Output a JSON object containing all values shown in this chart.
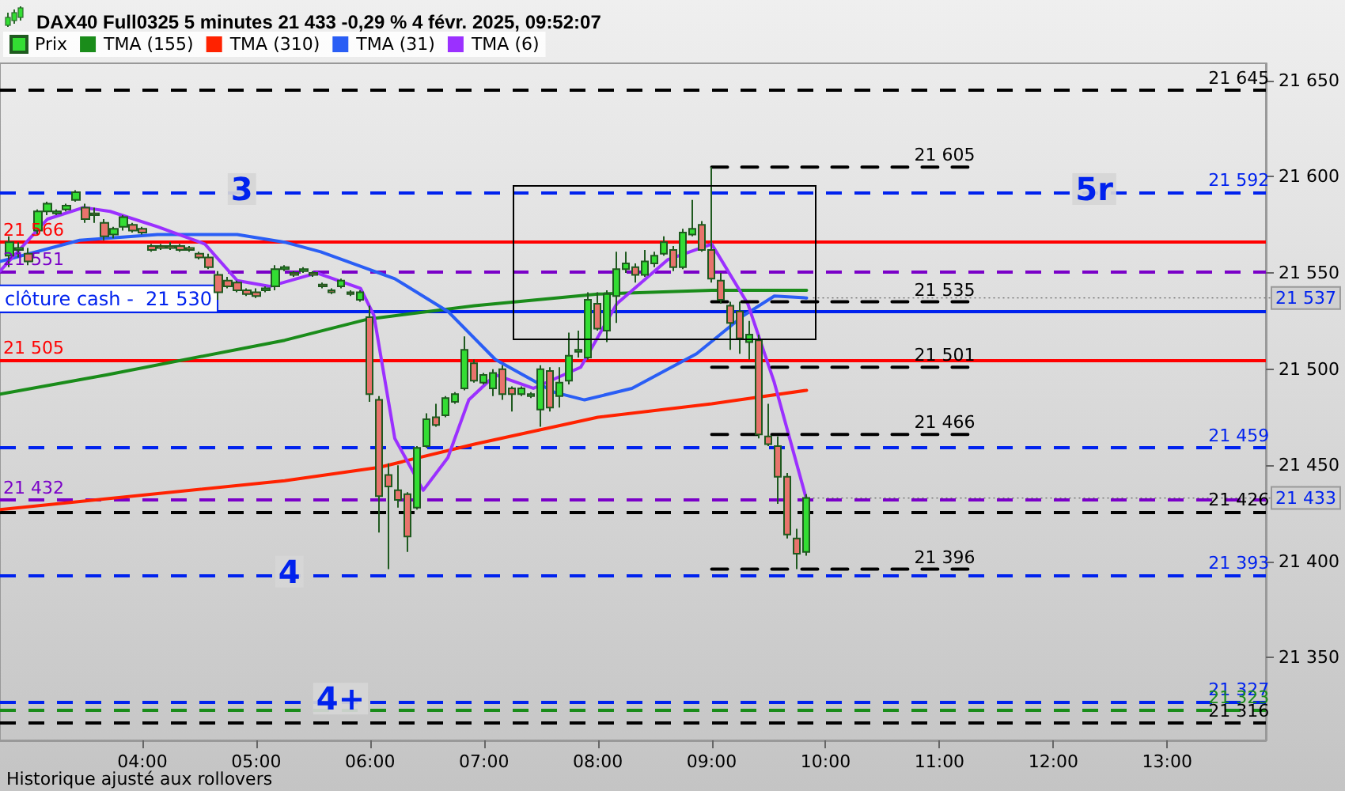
{
  "chart_data": {
    "type": "candlestick",
    "title": "DAX40 Full0325 5 minutes 21 433 -0,29 % 4 févr. 2025, 09:52:07",
    "legend": "top left",
    "xlim": [
      "2025-02-04T02:45",
      "2025-02-04T13:52"
    ],
    "xticks": [
      {
        "value": "2025-02-04T04:00",
        "label": "04:00"
      },
      {
        "value": "2025-02-04T05:00",
        "label": "05:00"
      },
      {
        "value": "2025-02-04T06:00",
        "label": "06:00"
      },
      {
        "value": "2025-02-04T07:00",
        "label": "07:00"
      },
      {
        "value": "2025-02-04T08:00",
        "label": "08:00"
      },
      {
        "value": "2025-02-04T09:00",
        "label": "09:00"
      },
      {
        "value": "2025-02-04T10:00",
        "label": "10:00"
      },
      {
        "value": "2025-02-04T11:00",
        "label": "11:00"
      },
      {
        "value": "2025-02-04T12:00",
        "label": "12:00"
      },
      {
        "value": "2025-02-04T13:00",
        "label": "13:00"
      }
    ],
    "ylim": [
      21307,
      21659
    ],
    "yticks": [
      {
        "value": 21350,
        "label": "21 350"
      },
      {
        "value": 21400,
        "label": "21 400"
      },
      {
        "value": 21450,
        "label": "21 450"
      },
      {
        "value": 21500,
        "label": "21 500"
      },
      {
        "value": 21550,
        "label": "21 550"
      },
      {
        "value": 21600,
        "label": "21 600"
      },
      {
        "value": 21650,
        "label": "21 650"
      }
    ],
    "series": [
      {
        "type": "line",
        "name": "TMA (155)",
        "color": "#1a8c1a",
        "marker": "none",
        "line_style": "solid",
        "x": [
          "2025-02-04T02:45",
          "2025-02-04T03:41",
          "2025-02-04T05:15",
          "2025-02-04T05:59",
          "2025-02-04T06:55",
          "2025-02-04T08:00",
          "2025-02-04T09:00",
          "2025-02-04T09:50"
        ],
        "values": [
          21487,
          21497,
          21515,
          21526,
          21533,
          21539,
          21541,
          21541
        ]
      },
      {
        "type": "line",
        "name": "TMA (310)",
        "color": "#ff2200",
        "marker": "none",
        "line_style": "solid",
        "x": [
          "2025-02-04T02:45",
          "2025-02-04T05:15",
          "2025-02-04T06:05",
          "2025-02-04T06:55",
          "2025-02-04T08:00",
          "2025-02-04T09:00",
          "2025-02-04T09:50"
        ],
        "values": [
          21427,
          21442,
          21449,
          21461,
          21475,
          21482,
          21489
        ]
      },
      {
        "type": "line",
        "name": "TMA (31)",
        "color": "#2a5ef5",
        "marker": "none",
        "line_style": "solid",
        "x": [
          "2025-02-04T02:45",
          "2025-02-04T03:27",
          "2025-02-04T04:08",
          "2025-02-04T04:50",
          "2025-02-04T05:15",
          "2025-02-04T05:34",
          "2025-02-04T06:13",
          "2025-02-04T06:41",
          "2025-02-04T07:06",
          "2025-02-04T07:37",
          "2025-02-04T07:53",
          "2025-02-04T08:18",
          "2025-02-04T08:52",
          "2025-02-04T09:17",
          "2025-02-04T09:33",
          "2025-02-04T09:50"
        ],
        "values": [
          21556,
          21567,
          21570,
          21570,
          21566,
          21561,
          21547,
          21530,
          21505,
          21488,
          21484,
          21490,
          21508,
          21528,
          21538,
          21537
        ]
      },
      {
        "type": "line",
        "name": "TMA (6)",
        "color": "#9b30ff",
        "marker": "none",
        "line_style": "solid",
        "x": [
          "2025-02-04T02:45",
          "2025-02-04T03:10",
          "2025-02-04T03:29",
          "2025-02-04T03:43",
          "2025-02-04T04:08",
          "2025-02-04T04:33",
          "2025-02-04T04:50",
          "2025-02-04T05:07",
          "2025-02-04T05:32",
          "2025-02-04T05:55",
          "2025-02-04T06:02",
          "2025-02-04T06:13",
          "2025-02-04T06:28",
          "2025-02-04T06:41",
          "2025-02-04T06:52",
          "2025-02-04T07:06",
          "2025-02-04T07:26",
          "2025-02-04T07:51",
          "2025-02-04T08:10",
          "2025-02-04T08:37",
          "2025-02-04T09:00",
          "2025-02-04T09:19",
          "2025-02-04T09:33",
          "2025-02-04T09:50"
        ],
        "values": [
          21551,
          21578,
          21584,
          21582,
          21574,
          21565,
          21546,
          21543,
          21550,
          21542,
          21528,
          21464,
          21437,
          21454,
          21484,
          21497,
          21490,
          21501,
          21534,
          21557,
          21565,
          21534,
          21493,
          21432
        ]
      },
      {
        "type": "line",
        "color": "#000000",
        "marker": "none",
        "line_style": "dashed",
        "x": [
          "2025-02-04T09:00",
          "2025-02-04T11:15"
        ],
        "values": [
          21605,
          21605
        ]
      },
      {
        "type": "line",
        "color": "#000000",
        "marker": "none",
        "line_style": "dashed",
        "x": [
          "2025-02-04T09:00",
          "2025-02-04T11:15"
        ],
        "values": [
          21535,
          21535
        ]
      },
      {
        "type": "line",
        "color": "#000000",
        "marker": "none",
        "line_style": "dashed",
        "x": [
          "2025-02-04T09:00",
          "2025-02-04T11:15"
        ],
        "values": [
          21501,
          21501
        ]
      },
      {
        "type": "line",
        "color": "#000000",
        "marker": "none",
        "line_style": "dashed",
        "x": [
          "2025-02-04T09:00",
          "2025-02-04T11:15"
        ],
        "values": [
          21466,
          21466
        ]
      },
      {
        "type": "line",
        "color": "#000000",
        "marker": "none",
        "line_style": "dashed",
        "x": [
          "2025-02-04T09:00",
          "2025-02-04T11:15"
        ],
        "values": [
          21396,
          21396
        ]
      },
      {
        "type": "candlestick",
        "name": "Prix",
        "color": "#33dd33",
        "x": [
          "2025-02-04T02:50",
          "2025-02-04T02:55",
          "2025-02-04T03:00",
          "2025-02-04T03:05",
          "2025-02-04T03:10",
          "2025-02-04T03:15",
          "2025-02-04T03:20",
          "2025-02-04T03:25",
          "2025-02-04T03:30",
          "2025-02-04T03:35",
          "2025-02-04T03:40",
          "2025-02-04T03:45",
          "2025-02-04T03:50",
          "2025-02-04T03:55",
          "2025-02-04T04:00",
          "2025-02-04T04:05",
          "2025-02-04T04:10",
          "2025-02-04T04:15",
          "2025-02-04T04:20",
          "2025-02-04T04:25",
          "2025-02-04T04:30",
          "2025-02-04T04:35",
          "2025-02-04T04:40",
          "2025-02-04T04:45",
          "2025-02-04T04:50",
          "2025-02-04T04:55",
          "2025-02-04T05:00",
          "2025-02-04T05:05",
          "2025-02-04T05:10",
          "2025-02-04T05:15",
          "2025-02-04T05:20",
          "2025-02-04T05:25",
          "2025-02-04T05:30",
          "2025-02-04T05:35",
          "2025-02-04T05:40",
          "2025-02-04T05:45",
          "2025-02-04T05:50",
          "2025-02-04T05:55",
          "2025-02-04T06:00",
          "2025-02-04T06:05",
          "2025-02-04T06:10",
          "2025-02-04T06:15",
          "2025-02-04T06:20",
          "2025-02-04T06:25",
          "2025-02-04T06:30",
          "2025-02-04T06:35",
          "2025-02-04T06:40",
          "2025-02-04T06:45",
          "2025-02-04T06:50",
          "2025-02-04T06:55",
          "2025-02-04T07:00",
          "2025-02-04T07:05",
          "2025-02-04T07:10",
          "2025-02-04T07:15",
          "2025-02-04T07:20",
          "2025-02-04T07:25",
          "2025-02-04T07:30",
          "2025-02-04T07:35",
          "2025-02-04T07:40",
          "2025-02-04T07:45",
          "2025-02-04T07:50",
          "2025-02-04T07:55",
          "2025-02-04T08:00",
          "2025-02-04T08:05",
          "2025-02-04T08:10",
          "2025-02-04T08:15",
          "2025-02-04T08:20",
          "2025-02-04T08:25",
          "2025-02-04T08:30",
          "2025-02-04T08:35",
          "2025-02-04T08:40",
          "2025-02-04T08:45",
          "2025-02-04T08:50",
          "2025-02-04T08:55",
          "2025-02-04T09:00",
          "2025-02-04T09:05",
          "2025-02-04T09:10",
          "2025-02-04T09:15",
          "2025-02-04T09:20",
          "2025-02-04T09:25",
          "2025-02-04T09:30",
          "2025-02-04T09:35",
          "2025-02-04T09:40",
          "2025-02-04T09:45",
          "2025-02-04T09:50"
        ],
        "ohlc": [
          [
            21559,
            21569,
            21553,
            21566
          ],
          [
            21562,
            21566,
            21558,
            21563
          ],
          [
            21560,
            21563,
            21554,
            21556
          ],
          [
            21572,
            21583,
            21570,
            21582
          ],
          [
            21582,
            21587,
            21580,
            21586
          ],
          [
            21581,
            21583,
            21580,
            21582
          ],
          [
            21583,
            21586,
            21582,
            21585
          ],
          [
            21588,
            21593,
            21587,
            21592
          ],
          [
            21584,
            21586,
            21576,
            21578
          ],
          [
            21581,
            21584,
            21576,
            21580
          ],
          [
            21576,
            21578,
            21567,
            21569
          ],
          [
            21570,
            21574,
            21568,
            21573
          ],
          [
            21574,
            21580,
            21572,
            21579
          ],
          [
            21575,
            21576,
            21571,
            21572
          ],
          [
            21573,
            21574,
            21570,
            21571
          ],
          [
            21564,
            21565,
            21561,
            21562
          ],
          [
            21564,
            21565,
            21562,
            21563
          ],
          [
            21564,
            21566,
            21562,
            21563
          ],
          [
            21564,
            21565,
            21561,
            21562
          ],
          [
            21563,
            21564,
            21561,
            21562
          ],
          [
            21560,
            21561,
            21557,
            21558
          ],
          [
            21558,
            21560,
            21552,
            21553
          ],
          [
            21549,
            21551,
            21536,
            21540
          ],
          [
            21546,
            21548,
            21542,
            21543
          ],
          [
            21545,
            21546,
            21540,
            21541
          ],
          [
            21541,
            21542,
            21538,
            21539
          ],
          [
            21540,
            21542,
            21537,
            21538
          ],
          [
            21541,
            21543,
            21540,
            21542
          ],
          [
            21543,
            21554,
            21541,
            21552
          ],
          [
            21552,
            21554,
            21551,
            21553
          ],
          [
            21550,
            21551,
            21548,
            21549
          ],
          [
            21551,
            21553,
            21550,
            21552
          ],
          [
            21550,
            21551,
            21548,
            21549
          ],
          [
            21544,
            21545,
            21542,
            21543
          ],
          [
            21541,
            21542,
            21539,
            21540
          ],
          [
            21543,
            21547,
            21542,
            21546
          ],
          [
            21540,
            21541,
            21538,
            21539
          ],
          [
            21536,
            21541,
            21535,
            21540
          ],
          [
            21527,
            21533,
            21483,
            21487
          ],
          [
            21484,
            21486,
            21415,
            21434
          ],
          [
            21445,
            21451,
            21396,
            21439
          ],
          [
            21437,
            21450,
            21428,
            21432
          ],
          [
            21435,
            21436,
            21405,
            21413
          ],
          [
            21428,
            21460,
            21427,
            21459
          ],
          [
            21460,
            21477,
            21459,
            21474
          ],
          [
            21475,
            21482,
            21470,
            21471
          ],
          [
            21476,
            21486,
            21475,
            21485
          ],
          [
            21483,
            21488,
            21482,
            21487
          ],
          [
            21490,
            21517,
            21489,
            21510
          ],
          [
            21503,
            21505,
            21493,
            21494
          ],
          [
            21493,
            21498,
            21492,
            21497
          ],
          [
            21490,
            21500,
            21486,
            21498
          ],
          [
            21500,
            21502,
            21484,
            21487
          ],
          [
            21490,
            21491,
            21478,
            21487
          ],
          [
            21487,
            21491,
            21486,
            21490
          ],
          [
            21486,
            21488,
            21485,
            21487
          ],
          [
            21479,
            21502,
            21470,
            21500
          ],
          [
            21499,
            21501,
            21478,
            21480
          ],
          [
            21486,
            21501,
            21480,
            21493
          ],
          [
            21494,
            21519,
            21492,
            21507
          ],
          [
            21509,
            21520,
            21506,
            21510
          ],
          [
            21506,
            21540,
            21505,
            21536
          ],
          [
            21534,
            21540,
            21520,
            21521
          ],
          [
            21520,
            21541,
            21514,
            21539
          ],
          [
            21538,
            21561,
            21524,
            21552
          ],
          [
            21552,
            21561,
            21550,
            21555
          ],
          [
            21553,
            21555,
            21545,
            21549
          ],
          [
            21549,
            21562,
            21548,
            21556
          ],
          [
            21555,
            21561,
            21553,
            21559
          ],
          [
            21560,
            21569,
            21559,
            21566
          ],
          [
            21562,
            21564,
            21551,
            21553
          ],
          [
            21553,
            21573,
            21552,
            21571
          ],
          [
            21570,
            21588,
            21569,
            21573
          ],
          [
            21575,
            21577,
            21561,
            21562
          ],
          [
            21562,
            21605,
            21545,
            21547
          ],
          [
            21546,
            21550,
            21534,
            21536
          ],
          [
            21533,
            21535,
            21510,
            21524
          ],
          [
            21530,
            21535,
            21508,
            21516
          ],
          [
            21514,
            21525,
            21505,
            21518
          ],
          [
            21515,
            21518,
            21464,
            21466
          ],
          [
            21465,
            21482,
            21460,
            21461
          ],
          [
            21460,
            21465,
            21430,
            21444
          ],
          [
            21444,
            21446,
            21412,
            21414
          ],
          [
            21412,
            21417,
            21396,
            21404
          ],
          [
            21405,
            21435,
            21403,
            21433
          ]
        ],
        "colors": [
          "#33dd33",
          "#33dd33",
          "#e8736c",
          "#33dd33",
          "#33dd33",
          "#33dd33",
          "#33dd33",
          "#33dd33",
          "#e8736c",
          "#e8736c",
          "#e8736c",
          "#33dd33",
          "#33dd33",
          "#e8736c",
          "#e8736c",
          "#e8736c",
          "#e8736c",
          "#e8736c",
          "#e8736c",
          "#e8736c",
          "#e8736c",
          "#e8736c",
          "#e8736c",
          "#e8736c",
          "#e8736c",
          "#e8736c",
          "#e8736c",
          "#33dd33",
          "#33dd33",
          "#33dd33",
          "#e8736c",
          "#33dd33",
          "#e8736c",
          "#e8736c",
          "#e8736c",
          "#33dd33",
          "#e8736c",
          "#33dd33",
          "#e8736c",
          "#e8736c",
          "#e8736c",
          "#e8736c",
          "#e8736c",
          "#33dd33",
          "#33dd33",
          "#e8736c",
          "#33dd33",
          "#33dd33",
          "#33dd33",
          "#e8736c",
          "#33dd33",
          "#33dd33",
          "#e8736c",
          "#e8736c",
          "#33dd33",
          "#33dd33",
          "#33dd33",
          "#e8736c",
          "#33dd33",
          "#33dd33",
          "#33dd33",
          "#33dd33",
          "#e8736c",
          "#33dd33",
          "#33dd33",
          "#33dd33",
          "#e8736c",
          "#33dd33",
          "#33dd33",
          "#33dd33",
          "#e8736c",
          "#33dd33",
          "#33dd33",
          "#e8736c",
          "#e8736c",
          "#e8736c",
          "#e8736c",
          "#e8736c",
          "#33dd33",
          "#e8736c",
          "#e8736c",
          "#e8736c",
          "#e8736c",
          "#e8736c",
          "#33dd33"
        ]
      }
    ],
    "ref_lines": [
      {
        "axis": "y",
        "value": 21645,
        "color": "#000000",
        "line_style": "dashed"
      },
      {
        "axis": "y",
        "value": 21592,
        "color": "#0022ee",
        "line_style": "dashed"
      },
      {
        "axis": "y",
        "value": 21566,
        "color": "#ff0000",
        "line_style": "solid"
      },
      {
        "axis": "y",
        "value": 21551,
        "color": "#7a00c8",
        "line_style": "dashed"
      },
      {
        "axis": "y",
        "value": 21530,
        "color": "#0022ee",
        "line_style": "solid",
        "label": "clôture cash -  21 530"
      },
      {
        "axis": "y",
        "value": 21505,
        "color": "#ff0000",
        "line_style": "solid"
      },
      {
        "axis": "y",
        "value": 21459,
        "color": "#0022ee",
        "line_style": "dashed"
      },
      {
        "axis": "y",
        "value": 21432,
        "color": "#7a00c8",
        "line_style": "dashed"
      },
      {
        "axis": "y",
        "value": 21426,
        "color": "#000000",
        "line_style": "dashed"
      },
      {
        "axis": "y",
        "value": 21393,
        "color": "#0022ee",
        "line_style": "dashed"
      },
      {
        "axis": "y",
        "value": 21327,
        "color": "#0022ee",
        "line_style": "dashed"
      },
      {
        "axis": "y",
        "value": 21323,
        "color": "#1a8c1a",
        "line_style": "dashed"
      },
      {
        "axis": "y",
        "value": 21316,
        "color": "#000000",
        "line_style": "dashed"
      }
    ],
    "annotations": [
      "Historique ajusté aux rollovers",
      {
        "text": "21 566",
        "x": "2025-02-04T02:45",
        "y": 21566
      },
      {
        "text": "21 551",
        "x": "2025-02-04T02:45",
        "y": 21551
      },
      {
        "text": "21 505",
        "x": "2025-02-04T02:45",
        "y": 21505
      },
      {
        "text": "21 432",
        "x": "2025-02-04T02:45",
        "y": 21432
      },
      {
        "text": "3",
        "x": "2025-02-04T04:45",
        "y": 21592
      },
      {
        "text": "4",
        "x": "2025-02-04T05:10",
        "y": 21393
      },
      {
        "text": "4+",
        "x": "2025-02-04T05:30",
        "y": 21327
      },
      {
        "text": "5r",
        "x": "2025-02-04T12:10",
        "y": 21592
      },
      {
        "text": "21 605",
        "x": "2025-02-04T10:45",
        "y": 21605
      },
      {
        "text": "21 535",
        "x": "2025-02-04T10:45",
        "y": 21535
      },
      {
        "text": "21 501",
        "x": "2025-02-04T10:45",
        "y": 21501
      },
      {
        "text": "21 466",
        "x": "2025-02-04T10:45",
        "y": 21466
      },
      {
        "text": "21 396",
        "x": "2025-02-04T10:45",
        "y": 21396
      },
      {
        "text": "21 645",
        "x": "2025-02-04T13:20",
        "y": 21645
      },
      {
        "text": "21 592",
        "x": "2025-02-04T13:20",
        "y": 21592
      },
      {
        "text": "21 459",
        "x": "2025-02-04T13:20",
        "y": 21459
      },
      {
        "text": "21 426",
        "x": "2025-02-04T13:20",
        "y": 21426
      },
      {
        "text": "21 393",
        "x": "2025-02-04T13:20",
        "y": 21393
      },
      {
        "text": "21 327",
        "x": "2025-02-04T13:20",
        "y": 21327
      },
      {
        "text": "21 323",
        "x": "2025-02-04T13:20",
        "y": 21323
      },
      {
        "text": "21 316",
        "x": "2025-02-04T13:20",
        "y": 21316
      },
      {
        "text": "21 537",
        "x": "2025-02-04T09:50",
        "y": 21537
      },
      {
        "text": "21 433",
        "x": "2025-02-04T09:50",
        "y": 21433
      }
    ]
  }
}
